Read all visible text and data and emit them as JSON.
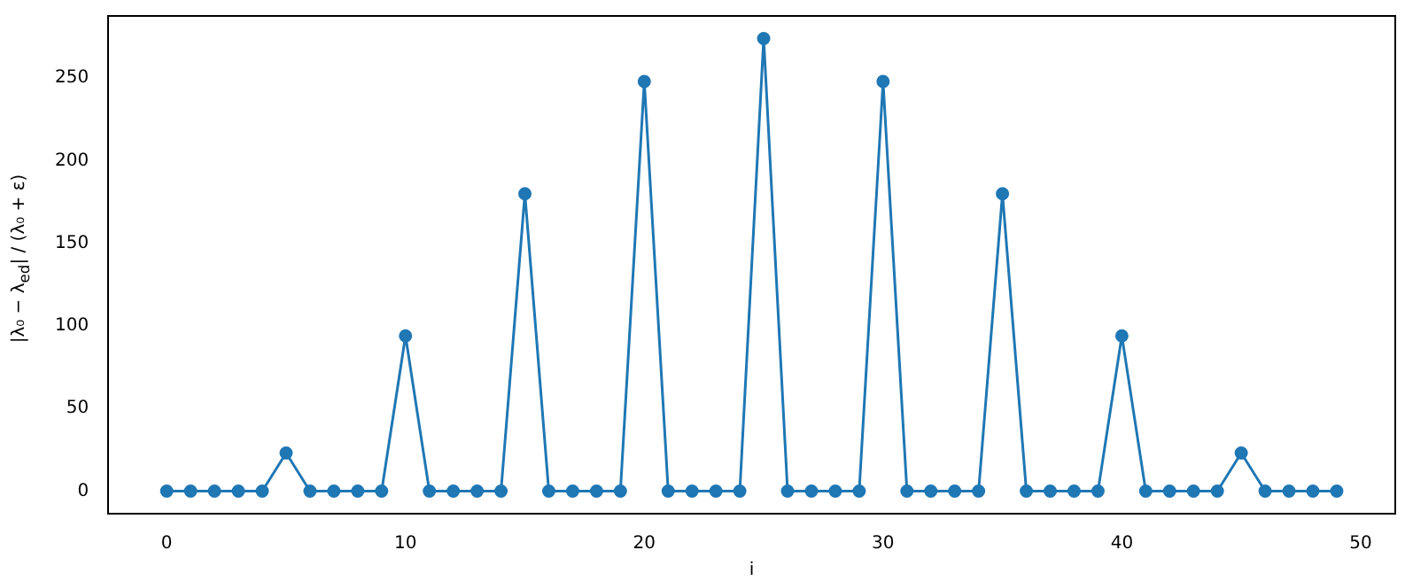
{
  "chart_data": {
    "type": "line",
    "xlabel": "i",
    "ylabel": "|λ₀ − λ$_{ed}$| / (λ₀ + ε)",
    "x": [
      0,
      1,
      2,
      3,
      4,
      5,
      6,
      7,
      8,
      9,
      10,
      11,
      12,
      13,
      14,
      15,
      16,
      17,
      18,
      19,
      20,
      21,
      22,
      23,
      24,
      25,
      26,
      27,
      28,
      29,
      30,
      31,
      32,
      33,
      34,
      35,
      36,
      37,
      38,
      39,
      40,
      41,
      42,
      43,
      44,
      45,
      46,
      47,
      48,
      49
    ],
    "series": [
      {
        "color": "#1f77b4",
        "values": [
          0,
          0,
          0,
          0,
          0,
          23,
          0,
          0,
          0,
          0,
          94,
          0,
          0,
          0,
          0,
          180,
          0,
          0,
          0,
          0,
          248,
          0,
          0,
          0,
          0,
          274,
          0,
          0,
          0,
          0,
          248,
          0,
          0,
          0,
          0,
          180,
          0,
          0,
          0,
          0,
          94,
          0,
          0,
          0,
          0,
          23,
          0,
          0,
          0,
          0
        ]
      }
    ],
    "xlim": [
      -2.45,
      51.45
    ],
    "xticks": [
      0,
      10,
      20,
      30,
      40,
      50
    ],
    "ylim": [
      -13.7,
      287.7
    ],
    "yticks": [
      0,
      50,
      100,
      150,
      200,
      250
    ],
    "marker": "circle",
    "line_style": "solid",
    "grid": false,
    "legend": false
  }
}
